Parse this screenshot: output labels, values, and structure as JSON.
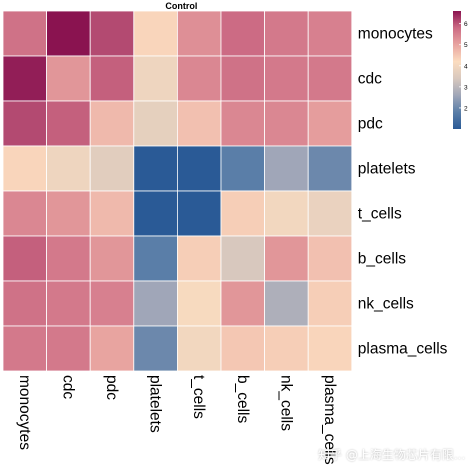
{
  "chart_data": {
    "type": "heatmap",
    "title": "Control",
    "rows": [
      "monocytes",
      "cdc",
      "pdc",
      "platelets",
      "t_cells",
      "b_cells",
      "nk_cells",
      "plasma_cells"
    ],
    "columns": [
      "monocytes",
      "cdc",
      "pdc",
      "platelets",
      "t_cells",
      "b_cells",
      "nk_cells",
      "plasma_cells"
    ],
    "values": [
      [
        5.7,
        6.6,
        6.1,
        4.3,
        5.3,
        5.8,
        5.6,
        5.5
      ],
      [
        6.5,
        5.2,
        5.9,
        3.9,
        5.4,
        5.7,
        5.6,
        5.6
      ],
      [
        6.1,
        5.9,
        4.7,
        3.7,
        4.6,
        5.4,
        5.4,
        5.1
      ],
      [
        4.3,
        3.9,
        3.6,
        1.0,
        1.0,
        1.8,
        2.6,
        2.0
      ],
      [
        5.4,
        5.2,
        4.7,
        1.0,
        1.0,
        4.4,
        4.0,
        3.8
      ],
      [
        5.9,
        5.6,
        5.2,
        1.8,
        4.4,
        3.4,
        5.2,
        4.6
      ],
      [
        5.7,
        5.6,
        5.5,
        2.6,
        4.1,
        5.2,
        2.8,
        4.4
      ],
      [
        5.6,
        5.6,
        5.0,
        2.0,
        4.0,
        4.5,
        4.4,
        4.3
      ]
    ],
    "color_scale": {
      "min": 1,
      "max": 6.6,
      "ticks": [
        2,
        3,
        4,
        5,
        6
      ],
      "stops": [
        "#2a5a96",
        "#5a7ea8",
        "#a0a6b8",
        "#d8c8be",
        "#fbdcbf",
        "#e8a4a0",
        "#cc6b84",
        "#8a1350"
      ]
    },
    "legend_placement": "top-right",
    "grid": false
  },
  "watermark": "知乎 @上海生物芯片有限..."
}
